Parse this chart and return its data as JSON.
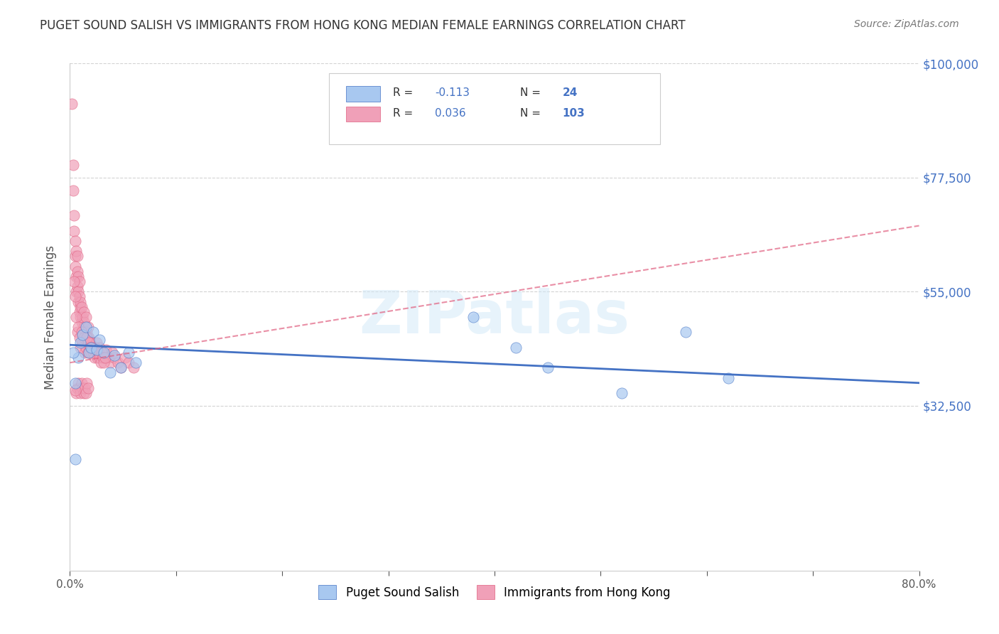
{
  "title": "PUGET SOUND SALISH VS IMMIGRANTS FROM HONG KONG MEDIAN FEMALE EARNINGS CORRELATION CHART",
  "source": "Source: ZipAtlas.com",
  "xlabel": "",
  "ylabel": "Median Female Earnings",
  "xlim": [
    0,
    0.8
  ],
  "ylim": [
    0,
    100000
  ],
  "xtick_labels": [
    "0.0%",
    "80.0%"
  ],
  "ytick_labels": [
    "$32,500",
    "$55,000",
    "$77,500",
    "$100,000"
  ],
  "ytick_values": [
    32500,
    55000,
    77500,
    100000
  ],
  "r_salish": -0.113,
  "n_salish": 24,
  "r_hk": 0.036,
  "n_hk": 103,
  "color_salish": "#a8c8f0",
  "color_hk": "#f0a0b8",
  "line_color_salish": "#4472c4",
  "line_color_hk": "#e06080",
  "title_color": "#333333",
  "axis_label_color": "#555555",
  "tick_label_color_right": "#4472c4",
  "watermark": "ZIPatlas",
  "legend_r_color": "#333333",
  "legend_n_color": "#4472c4",
  "blue_x": [
    0.005,
    0.008,
    0.01,
    0.012,
    0.015,
    0.018,
    0.02,
    0.022,
    0.025,
    0.028,
    0.032,
    0.038,
    0.042,
    0.048,
    0.055,
    0.062,
    0.38,
    0.42,
    0.45,
    0.52,
    0.58,
    0.62,
    0.005,
    0.003
  ],
  "blue_y": [
    37000,
    42000,
    45000,
    46500,
    48000,
    43000,
    44000,
    47000,
    43500,
    45500,
    43000,
    39000,
    42500,
    40000,
    43000,
    41000,
    50000,
    44000,
    40000,
    35000,
    47000,
    38000,
    22000,
    43000
  ],
  "pink_x": [
    0.002,
    0.003,
    0.003,
    0.004,
    0.004,
    0.005,
    0.005,
    0.005,
    0.006,
    0.006,
    0.006,
    0.007,
    0.007,
    0.007,
    0.008,
    0.008,
    0.008,
    0.009,
    0.009,
    0.009,
    0.01,
    0.01,
    0.01,
    0.011,
    0.011,
    0.012,
    0.012,
    0.013,
    0.013,
    0.014,
    0.014,
    0.015,
    0.015,
    0.016,
    0.016,
    0.017,
    0.017,
    0.018,
    0.018,
    0.019,
    0.019,
    0.02,
    0.021,
    0.022,
    0.023,
    0.025,
    0.026,
    0.028,
    0.03,
    0.032,
    0.034,
    0.036,
    0.038,
    0.04,
    0.042,
    0.045,
    0.048,
    0.052,
    0.055,
    0.06,
    0.004,
    0.005,
    0.006,
    0.007,
    0.008,
    0.009,
    0.01,
    0.011,
    0.012,
    0.013,
    0.014,
    0.015,
    0.016,
    0.017,
    0.018,
    0.019,
    0.02,
    0.021,
    0.022,
    0.023,
    0.024,
    0.025,
    0.026,
    0.027,
    0.028,
    0.029,
    0.03,
    0.031,
    0.032,
    0.033,
    0.006,
    0.007,
    0.008,
    0.009,
    0.01,
    0.011,
    0.012,
    0.013,
    0.014,
    0.015,
    0.016,
    0.017,
    0.005
  ],
  "pink_y": [
    92000,
    80000,
    75000,
    70000,
    67000,
    65000,
    62000,
    60000,
    63000,
    58000,
    55000,
    62000,
    59000,
    56000,
    58000,
    55000,
    53000,
    57000,
    54000,
    51000,
    52000,
    50000,
    53000,
    49000,
    52000,
    50000,
    47000,
    49000,
    51000,
    48000,
    47000,
    46000,
    50000,
    47000,
    45000,
    46000,
    48000,
    44000,
    46000,
    45000,
    43000,
    44000,
    43500,
    43000,
    44000,
    45000,
    43000,
    44000,
    43000,
    42000,
    43500,
    42000,
    41000,
    43000,
    42000,
    41000,
    40000,
    42000,
    41000,
    40000,
    57000,
    54000,
    50000,
    47000,
    48000,
    46000,
    44000,
    47000,
    45000,
    46000,
    43000,
    44000,
    46000,
    43000,
    45000,
    44000,
    43000,
    44000,
    43000,
    42000,
    44000,
    43000,
    42000,
    43000,
    42000,
    41000,
    43000,
    42000,
    41000,
    42000,
    35000,
    36000,
    37000,
    36000,
    35000,
    37000,
    36000,
    35000,
    36000,
    35000,
    37000,
    36000,
    35500
  ]
}
